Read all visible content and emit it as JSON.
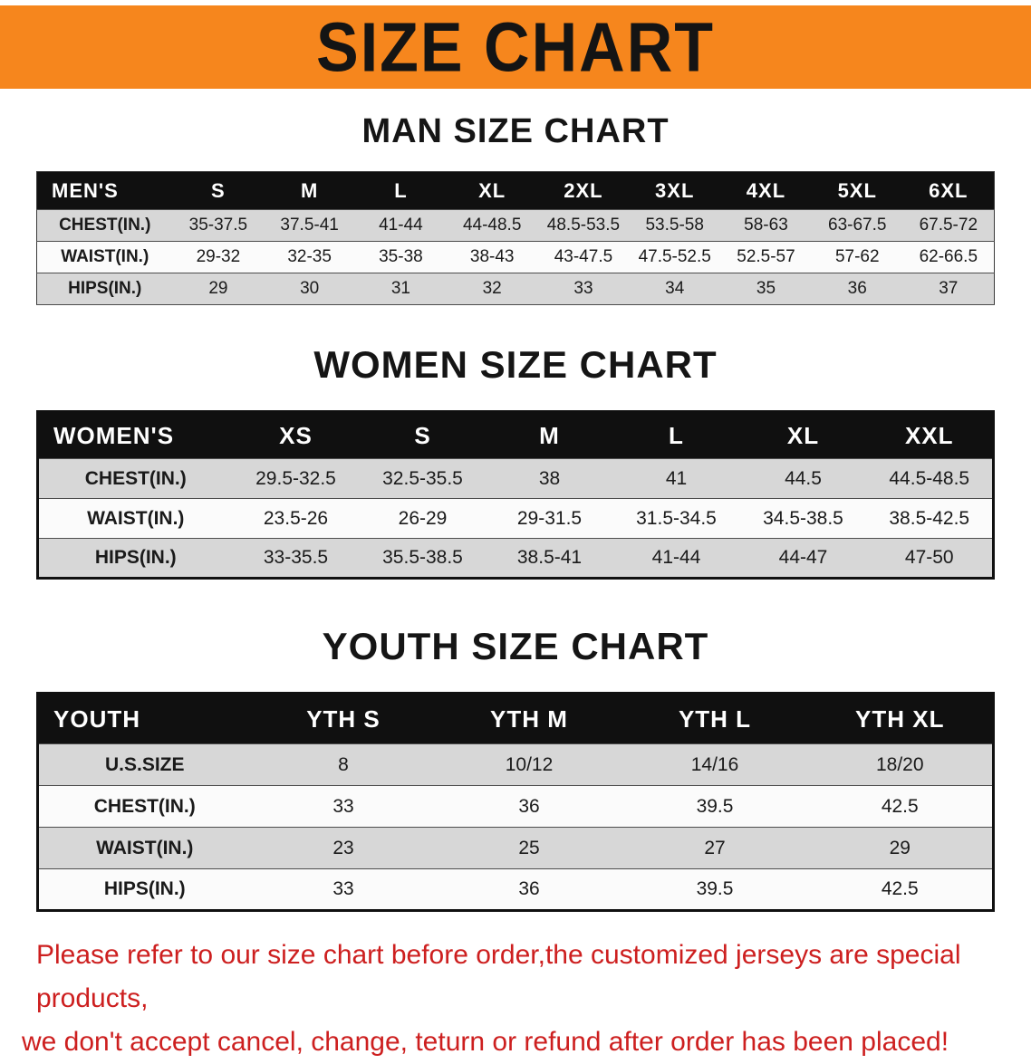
{
  "banner": {
    "title": "SIZE CHART"
  },
  "colors": {
    "banner_bg": "#F6861D",
    "table_header_bg": "#101010",
    "row_alt": "#d7d7d7",
    "disclaimer_red": "#cd1f1f"
  },
  "sections": [
    {
      "heading": "MAN SIZE CHART",
      "table": {
        "header": [
          "MEN'S",
          "S",
          "M",
          "L",
          "XL",
          "2XL",
          "3XL",
          "4XL",
          "5XL",
          "6XL"
        ],
        "rows": [
          {
            "label": "CHEST(IN.)",
            "values": [
              "35-37.5",
              "37.5-41",
              "41-44",
              "44-48.5",
              "48.5-53.5",
              "53.5-58",
              "58-63",
              "63-67.5",
              "67.5-72"
            ]
          },
          {
            "label": "WAIST(IN.)",
            "values": [
              "29-32",
              "32-35",
              "35-38",
              "38-43",
              "43-47.5",
              "47.5-52.5",
              "52.5-57",
              "57-62",
              "62-66.5"
            ]
          },
          {
            "label": "HIPS(IN.)",
            "values": [
              "29",
              "30",
              "31",
              "32",
              "33",
              "34",
              "35",
              "36",
              "37"
            ]
          }
        ]
      }
    },
    {
      "heading": "WOMEN SIZE CHART",
      "table": {
        "header": [
          "WOMEN'S",
          "XS",
          "S",
          "M",
          "L",
          "XL",
          "XXL"
        ],
        "rows": [
          {
            "label": "CHEST(IN.)",
            "values": [
              "29.5-32.5",
              "32.5-35.5",
              "38",
              "41",
              "44.5",
              "44.5-48.5"
            ]
          },
          {
            "label": "WAIST(IN.)",
            "values": [
              "23.5-26",
              "26-29",
              "29-31.5",
              "31.5-34.5",
              "34.5-38.5",
              "38.5-42.5"
            ]
          },
          {
            "label": "HIPS(IN.)",
            "values": [
              "33-35.5",
              "35.5-38.5",
              "38.5-41",
              "41-44",
              "44-47",
              "47-50"
            ]
          }
        ]
      }
    },
    {
      "heading": "YOUTH SIZE CHART",
      "table": {
        "header": [
          "YOUTH",
          "YTH S",
          "YTH M",
          "YTH L",
          "YTH XL"
        ],
        "rows": [
          {
            "label": "U.S.SIZE",
            "values": [
              "8",
              "10/12",
              "14/16",
              "18/20"
            ]
          },
          {
            "label": "CHEST(IN.)",
            "values": [
              "33",
              "36",
              "39.5",
              "42.5"
            ]
          },
          {
            "label": "WAIST(IN.)",
            "values": [
              "23",
              "25",
              "27",
              "29"
            ]
          },
          {
            "label": "HIPS(IN.)",
            "values": [
              "33",
              "36",
              "39.5",
              "42.5"
            ]
          }
        ]
      }
    }
  ],
  "disclaimer": {
    "line1": "Please refer to our size chart before order,the customized jerseys are special products,",
    "line2": "we don't accept cancel, change, teturn or refund after order has been placed!"
  }
}
